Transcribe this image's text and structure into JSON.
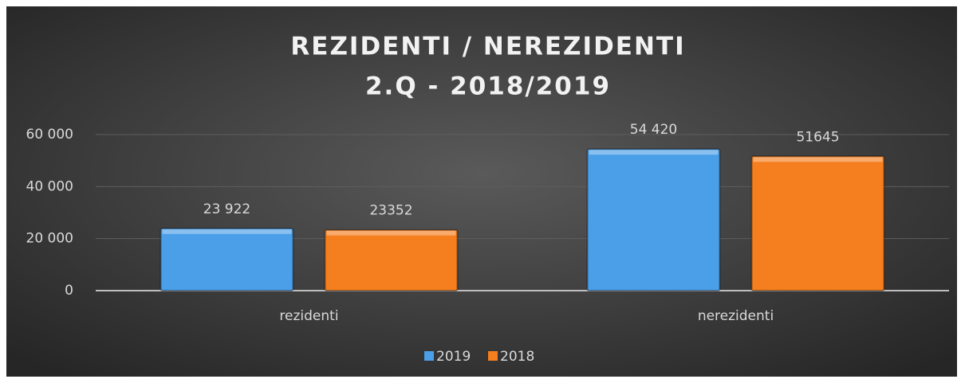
{
  "chart_data": {
    "type": "bar",
    "title": [
      "REZIDENTI / NEREZIDENTI",
      "2.Q - 2018/2019"
    ],
    "categories": [
      "rezidenti",
      "nerezidenti"
    ],
    "series": [
      {
        "name": "2019",
        "color": "#4a9fe8",
        "values": [
          23922,
          54420
        ],
        "value_labels": [
          "23 922",
          "54 420"
        ]
      },
      {
        "name": "2018",
        "color": "#f57f1e",
        "values": [
          23352,
          51645
        ],
        "value_labels": [
          "23352",
          "51645"
        ]
      }
    ],
    "ylim": [
      0,
      60000
    ],
    "yticks": [
      0,
      {
        "value": 20000,
        "label": "20 000"
      },
      {
        "value": 40000,
        "label": "40 000"
      },
      {
        "value": 60000,
        "label": "60 000"
      }
    ],
    "grid": true,
    "legend": "bottom"
  }
}
